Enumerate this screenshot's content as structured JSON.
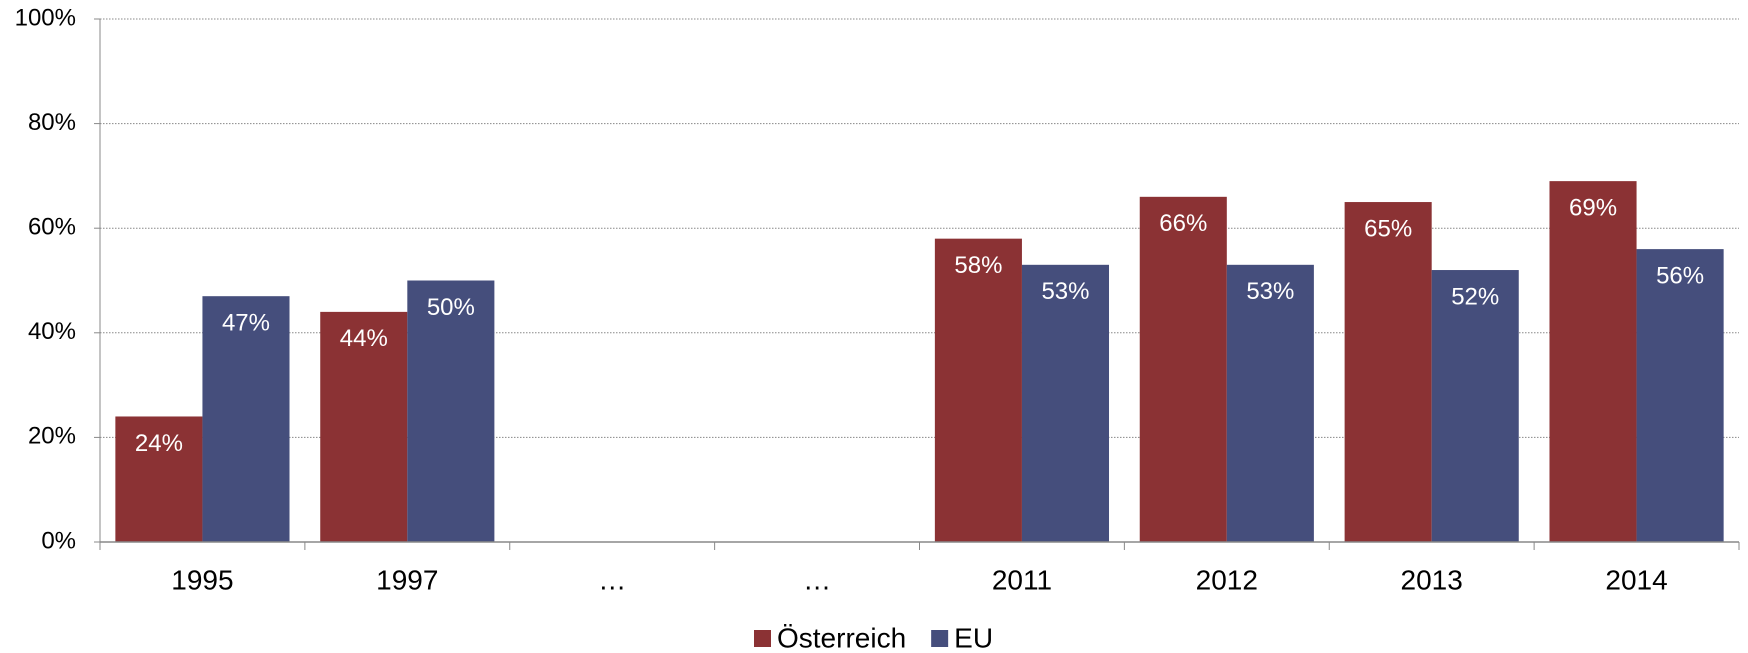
{
  "chart_data": {
    "type": "bar",
    "categories": [
      "1995",
      "1997",
      "…",
      "…",
      "2011",
      "2012",
      "2013",
      "2014"
    ],
    "series": [
      {
        "name": "Österreich",
        "color": "#8b3234",
        "values": [
          24,
          44,
          null,
          null,
          58,
          66,
          65,
          69
        ],
        "value_labels": [
          "24%",
          "44%",
          null,
          null,
          "58%",
          "66%",
          "65%",
          "69%"
        ]
      },
      {
        "name": "EU",
        "color": "#454e7c",
        "values": [
          47,
          50,
          null,
          null,
          53,
          53,
          52,
          56
        ],
        "value_labels": [
          "47%",
          "50%",
          null,
          null,
          "53%",
          "53%",
          "52%",
          "56%"
        ]
      }
    ],
    "ylim": [
      0,
      100
    ],
    "yticks": [
      {
        "value": 0,
        "label": "0%"
      },
      {
        "value": 20,
        "label": "20%"
      },
      {
        "value": 40,
        "label": "40%"
      },
      {
        "value": 60,
        "label": "60%"
      },
      {
        "value": 80,
        "label": "80%"
      },
      {
        "value": 100,
        "label": "100%"
      }
    ],
    "grid": true,
    "legend": "bottom"
  }
}
